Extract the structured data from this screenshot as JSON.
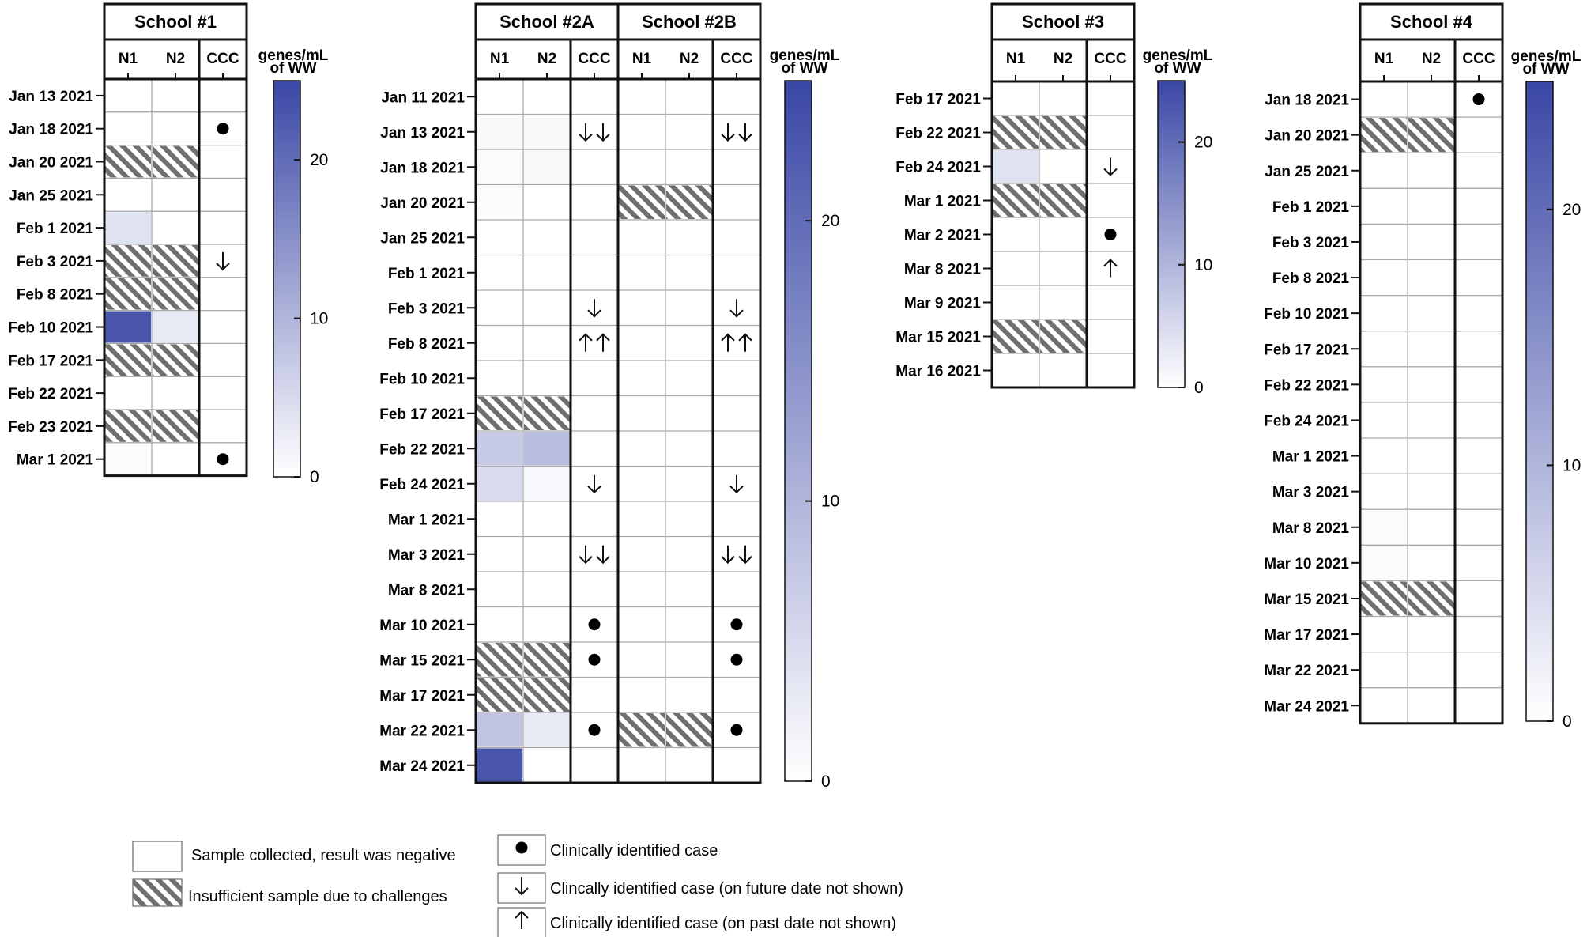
{
  "colors": {
    "scale_low": "#ffffff",
    "scale_high": "#3a47a5",
    "hatch": "#6f6f6f",
    "grid": "#aaaaaa",
    "frame": "#111111"
  },
  "chart_data": {
    "type": "heatmap",
    "value_label_line1": "genes/mL",
    "value_label_line2": "of WW",
    "row_status_meaning": {
      "negative": "Sample collected, result was negative",
      "insufficient": "Insufficient sample due to challenges"
    },
    "ccc_marker_meaning": {
      "dot": "Clinically identified case",
      "down": "Clincally identified case (on future date not shown)",
      "up": "Clinically identified case (on past date not shown)"
    },
    "panels": [
      {
        "groups": [
          "School #1"
        ],
        "columns": [
          "N1",
          "N2",
          "CCC"
        ],
        "colorbar": {
          "min": 0,
          "max": 25,
          "ticks": [
            0,
            10,
            20
          ]
        },
        "dates": [
          "Jan 13 2021",
          "Jan 18 2021",
          "Jan 20 2021",
          "Jan 25 2021",
          "Feb 1 2021",
          "Feb 3 2021",
          "Feb 8 2021",
          "Feb 10 2021",
          "Feb 17 2021",
          "Feb 22 2021",
          "Feb 23 2021",
          "Mar 1 2021"
        ],
        "values": [
          [
            [
              0,
              0
            ],
            [
              0,
              0
            ],
            [
              "insufficient",
              "insufficient"
            ],
            [
              0,
              0
            ],
            [
              4,
              0
            ],
            [
              "insufficient",
              "insufficient"
            ],
            [
              "insufficient",
              "insufficient"
            ],
            [
              23,
              3
            ],
            [
              "insufficient",
              "insufficient"
            ],
            [
              0,
              0
            ],
            [
              "insufficient",
              "insufficient"
            ],
            [
              0.5,
              0
            ]
          ]
        ],
        "ccc": [
          [
            "",
            "dot",
            "",
            "",
            "",
            "down",
            "",
            "",
            "",
            "",
            "",
            "dot"
          ]
        ]
      },
      {
        "groups": [
          "School #2A",
          "School #2B"
        ],
        "columns": [
          "N1",
          "N2",
          "CCC"
        ],
        "colorbar": {
          "min": 0,
          "max": 25,
          "ticks": [
            0,
            10,
            20
          ]
        },
        "dates": [
          "Jan 11 2021",
          "Jan 13 2021",
          "Jan 18 2021",
          "Jan 20 2021",
          "Jan 25 2021",
          "Feb 1 2021",
          "Feb 3 2021",
          "Feb 8 2021",
          "Feb 10 2021",
          "Feb 17 2021",
          "Feb 22 2021",
          "Feb 24 2021",
          "Mar 1 2021",
          "Mar 3 2021",
          "Mar 8 2021",
          "Mar 10 2021",
          "Mar 15 2021",
          "Mar 17 2021",
          "Mar 22 2021",
          "Mar 24 2021"
        ],
        "values": [
          [
            [
              0,
              0
            ],
            [
              0.8,
              0.8
            ],
            [
              0.5,
              0.8
            ],
            [
              0.4,
              0
            ],
            [
              0,
              0
            ],
            [
              0,
              0
            ],
            [
              0,
              0
            ],
            [
              0,
              0
            ],
            [
              0,
              0
            ],
            [
              "insufficient",
              "insufficient"
            ],
            [
              7,
              9
            ],
            [
              5,
              1
            ],
            [
              0,
              0
            ],
            [
              0,
              0
            ],
            [
              0,
              0
            ],
            [
              0,
              0
            ],
            [
              "insufficient",
              "insufficient"
            ],
            [
              "insufficient",
              "insufficient"
            ],
            [
              8,
              3
            ],
            [
              23,
              0
            ]
          ],
          [
            [
              0,
              0
            ],
            [
              0,
              0
            ],
            [
              0,
              0
            ],
            [
              "insufficient",
              "insufficient"
            ],
            [
              0,
              0
            ],
            [
              0,
              0
            ],
            [
              0,
              0
            ],
            [
              0,
              0
            ],
            [
              0,
              0
            ],
            [
              0,
              0
            ],
            [
              0,
              0
            ],
            [
              0,
              0
            ],
            [
              0,
              0
            ],
            [
              0,
              0
            ],
            [
              0,
              0
            ],
            [
              0,
              0
            ],
            [
              0,
              0
            ],
            [
              0,
              0
            ],
            [
              "insufficient",
              "insufficient"
            ],
            [
              0,
              0
            ]
          ]
        ],
        "ccc": [
          [
            "",
            "down2",
            "",
            "",
            "",
            "",
            "down",
            "up2",
            "",
            "",
            "",
            "down",
            "",
            "down2",
            "",
            "dot",
            "dot",
            "",
            "dot",
            ""
          ],
          [
            "",
            "down2",
            "",
            "",
            "",
            "",
            "down",
            "up2",
            "",
            "",
            "",
            "down",
            "",
            "down2",
            "",
            "dot",
            "dot",
            "",
            "dot",
            ""
          ]
        ]
      },
      {
        "groups": [
          "School #3"
        ],
        "columns": [
          "N1",
          "N2",
          "CCC"
        ],
        "colorbar": {
          "min": 0,
          "max": 25,
          "ticks": [
            0,
            10,
            20
          ]
        },
        "dates": [
          "Feb 17 2021",
          "Feb 22 2021",
          "Feb 24 2021",
          "Mar 1 2021",
          "Mar 2 2021",
          "Mar 8 2021",
          "Mar 9 2021",
          "Mar 15 2021",
          "Mar 16 2021"
        ],
        "values": [
          [
            [
              0,
              0
            ],
            [
              "insufficient",
              "insufficient"
            ],
            [
              4,
              0
            ],
            [
              "insufficient",
              "insufficient"
            ],
            [
              0,
              0
            ],
            [
              0,
              0
            ],
            [
              0,
              0
            ],
            [
              "insufficient",
              "insufficient"
            ],
            [
              0,
              0
            ]
          ]
        ],
        "ccc": [
          [
            "",
            "",
            "down",
            "",
            "dot",
            "up",
            "",
            "",
            ""
          ]
        ]
      },
      {
        "groups": [
          "School #4"
        ],
        "columns": [
          "N1",
          "N2",
          "CCC"
        ],
        "colorbar": {
          "min": 0,
          "max": 25,
          "ticks": [
            0,
            10,
            20
          ]
        },
        "dates": [
          "Jan 18 2021",
          "Jan 20 2021",
          "Jan 25 2021",
          "Feb 1 2021",
          "Feb 3 2021",
          "Feb 8 2021",
          "Feb 10 2021",
          "Feb 17 2021",
          "Feb 22 2021",
          "Feb 24 2021",
          "Mar 1 2021",
          "Mar 3 2021",
          "Mar 8 2021",
          "Mar 10 2021",
          "Mar 15 2021",
          "Mar 17 2021",
          "Mar 22 2021",
          "Mar 24 2021"
        ],
        "values": [
          [
            [
              0,
              0
            ],
            [
              "insufficient",
              "insufficient"
            ],
            [
              0,
              0
            ],
            [
              0,
              0
            ],
            [
              0,
              0
            ],
            [
              0,
              0
            ],
            [
              0,
              0
            ],
            [
              0,
              0
            ],
            [
              0,
              0
            ],
            [
              0,
              0
            ],
            [
              0,
              0
            ],
            [
              0,
              0
            ],
            [
              0.5,
              0
            ],
            [
              0.4,
              0
            ],
            [
              "insufficient",
              "insufficient"
            ],
            [
              0,
              0
            ],
            [
              0,
              0
            ],
            [
              0,
              0
            ]
          ]
        ],
        "ccc": [
          [
            "dot",
            "",
            "",
            "",
            "",
            "",
            "",
            "",
            "",
            "",
            "",
            "",
            "",
            "",
            "",
            "",
            "",
            ""
          ]
        ]
      }
    ]
  }
}
